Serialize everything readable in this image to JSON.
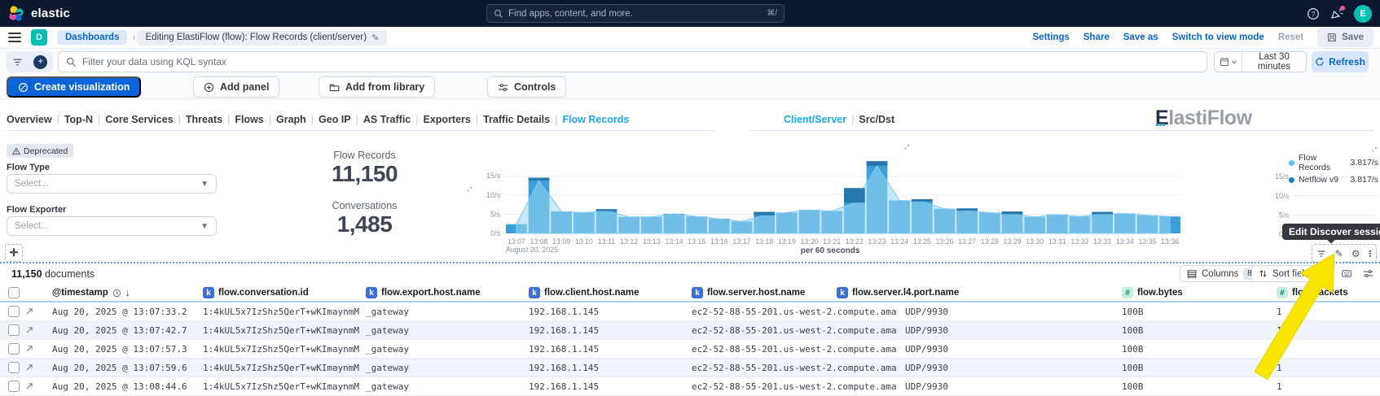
{
  "navbar": {
    "brand": "elastic",
    "search": {
      "placeholder": "Find apps, content, and more.",
      "shortcut": "⌘/"
    },
    "avatar_initial": "E"
  },
  "breadcrumbs": {
    "space_initial": "D",
    "root": "Dashboards",
    "current": "Editing ElastiFlow (flow): Flow Records (client/server)",
    "actions": {
      "settings": "Settings",
      "share": "Share",
      "save_as": "Save as",
      "switch_view": "Switch to view mode",
      "reset": "Reset",
      "save": "Save"
    }
  },
  "query_bar": {
    "placeholder": "Filter your data using KQL syntax",
    "time_range": "Last 30 minutes",
    "refresh": "Refresh"
  },
  "panel_toolbar": {
    "create_visualization": "Create visualization",
    "add_panel": "Add panel",
    "add_from_library": "Add from library",
    "controls": "Controls"
  },
  "nav_links": {
    "items": [
      "Overview",
      "Top-N",
      "Core Services",
      "Threats",
      "Flows",
      "Graph",
      "Geo IP",
      "AS Traffic",
      "Exporters",
      "Traffic Details",
      "Flow Records"
    ],
    "active": "Flow Records"
  },
  "view_tabs": {
    "items": [
      "Client/Server",
      "Src/Dst"
    ],
    "active": "Client/Server"
  },
  "brand_logo": {
    "first_letter": "E",
    "rest": "lastiFlow"
  },
  "filters_panel": {
    "deprecated": "Deprecated",
    "flow_type_label": "Flow Type",
    "flow_type_placeholder": "Select...",
    "flow_exporter_label": "Flow Exporter",
    "flow_exporter_placeholder": "Select..."
  },
  "metrics": {
    "flow_records_label": "Flow Records",
    "flow_records_value": "11,150",
    "conversations_label": "Conversations",
    "conversations_value": "1,485"
  },
  "chart_data": [
    {
      "type": "bar",
      "title": "Flow Records histogram",
      "x": [
        "13:07",
        "13:08",
        "13:09",
        "13:10",
        "13:11",
        "13:12",
        "13:13",
        "13:14",
        "13:15",
        "13:16",
        "13:17",
        "13:18",
        "13:19",
        "13:20",
        "13:21",
        "13:22",
        "13:23",
        "13:24",
        "13:25",
        "13:26",
        "13:27",
        "13:28",
        "13:29",
        "13:30",
        "13:31",
        "13:32",
        "13:33",
        "13:34",
        "13:35",
        "13:36"
      ],
      "x_secondary_label": "August 20, 2025",
      "series": [
        {
          "name": "Netflow v9",
          "type": "bar",
          "color": "#3da0d8",
          "cap_color": "#2779ad",
          "values": [
            2.4,
            14.5,
            5.7,
            5.4,
            6.3,
            4.3,
            4.3,
            5.1,
            4.4,
            3.8,
            3.1,
            5.6,
            5.4,
            6.1,
            5.8,
            11.8,
            18.8,
            8.6,
            8.9,
            6.4,
            6.5,
            5.4,
            5.7,
            4.3,
            4.9,
            4.4,
            5.6,
            5.2,
            4.7,
            4.4
          ]
        },
        {
          "name": "Flow Records",
          "type": "area",
          "color": "#9bd7f6",
          "values": [
            2.4,
            13.8,
            5.7,
            5.4,
            5.8,
            4.3,
            4.3,
            5.1,
            4.4,
            3.8,
            3.1,
            4.7,
            5.4,
            6.1,
            5.8,
            8.0,
            17.6,
            8.6,
            8.3,
            6.4,
            5.9,
            5.4,
            5.0,
            4.3,
            4.9,
            4.4,
            5.0,
            5.2,
            4.7,
            4.4
          ]
        }
      ],
      "y_ticks": [
        "0/s",
        "5/s",
        "10/s",
        "15/s"
      ],
      "ylim": [
        0,
        21
      ],
      "grid": true,
      "footer": "per 60 seconds"
    },
    {
      "type": "line",
      "title": "Flow rates",
      "y_ticks": [
        "0/s",
        "5/s",
        "10/s",
        "15/s"
      ],
      "ylim": [
        0,
        21
      ],
      "legend_position": "top-right",
      "legend": [
        {
          "name": "Flow Records",
          "value": "3.817/s",
          "color": "#55c7f5"
        },
        {
          "name": "Netflow v9",
          "value": "3.817/s",
          "color": "#1d7fbd"
        }
      ]
    }
  ],
  "tooltip": {
    "text": "Edit Discover session"
  },
  "documents_bar": {
    "count": "11,150",
    "label": "documents",
    "columns": "Columns",
    "columns_count": "8",
    "sort_fields": "Sort fields"
  },
  "table": {
    "columns": [
      {
        "label": "@timestamp",
        "type": "time",
        "sorted": "desc"
      },
      {
        "label": "flow.conversation.id",
        "type": "keyword"
      },
      {
        "label": "flow.export.host.name",
        "type": "keyword"
      },
      {
        "label": "flow.client.host.name",
        "type": "keyword"
      },
      {
        "label": "flow.server.host.name",
        "type": "keyword"
      },
      {
        "label": "flow.server.l4.port.name",
        "type": "keyword"
      },
      {
        "label": "flow.bytes",
        "type": "number"
      },
      {
        "label": "flow.packets",
        "type": "number"
      }
    ],
    "rows": [
      {
        "timestamp": "Aug 20, 2025 @ 13:07:33.2",
        "conversation_id": "1:4kUL5x7IzShz5QerT+wKImaynmM=",
        "export_host": "_gateway",
        "client_host": "192.168.1.145",
        "server_host": "ec2-52-88-55-201.us-west-2.compute.ama",
        "server_port": "UDP/9930",
        "bytes": "100B",
        "packets": "1"
      },
      {
        "timestamp": "Aug 20, 2025 @ 13:07:42.7",
        "conversation_id": "1:4kUL5x7IzShz5QerT+wKImaynmM=",
        "export_host": "_gateway",
        "client_host": "192.168.1.145",
        "server_host": "ec2-52-88-55-201.us-west-2.compute.ama",
        "server_port": "UDP/9930",
        "bytes": "100B",
        "packets": "1"
      },
      {
        "timestamp": "Aug 20, 2025 @ 13:07:57.3",
        "conversation_id": "1:4kUL5x7IzShz5QerT+wKImaynmM=",
        "export_host": "_gateway",
        "client_host": "192.168.1.145",
        "server_host": "ec2-52-88-55-201.us-west-2.compute.ama",
        "server_port": "UDP/9930",
        "bytes": "100B",
        "packets": "1"
      },
      {
        "timestamp": "Aug 20, 2025 @ 13:07:59.6",
        "conversation_id": "1:4kUL5x7IzShz5QerT+wKImaynmM=",
        "export_host": "_gateway",
        "client_host": "192.168.1.145",
        "server_host": "ec2-52-88-55-201.us-west-2.compute.ama",
        "server_port": "UDP/9930",
        "bytes": "100B",
        "packets": "1"
      },
      {
        "timestamp": "Aug 20, 2025 @ 13:08:44.6",
        "conversation_id": "1:4kUL5x7IzShz5QerT+wKImaynmM=",
        "export_host": "_gateway",
        "client_host": "192.168.1.145",
        "server_host": "ec2-52-88-55-201.us-west-2.compute.ama",
        "server_port": "UDP/9930",
        "bytes": "100B",
        "packets": "1"
      }
    ]
  }
}
